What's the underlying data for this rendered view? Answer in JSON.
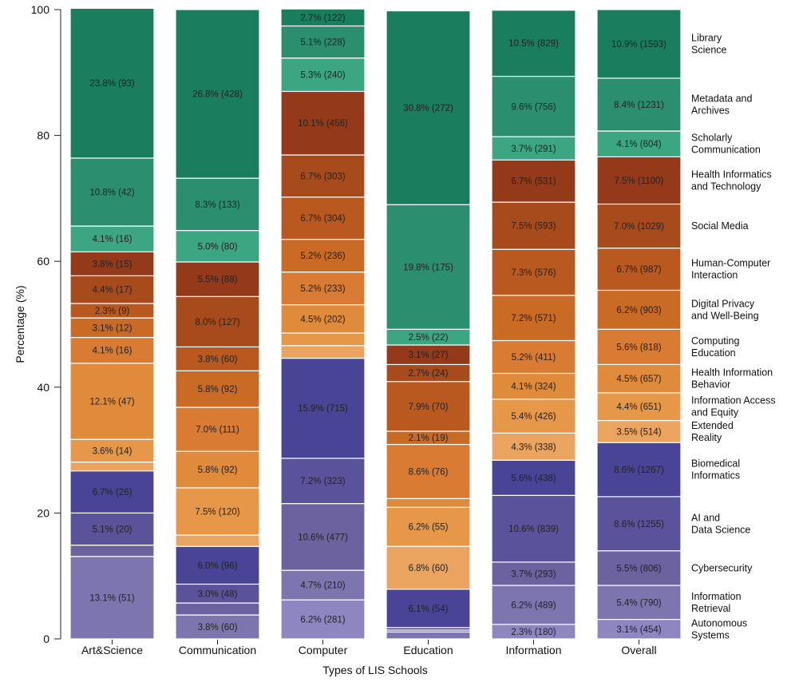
{
  "chart_data": {
    "type": "bar",
    "stacked": true,
    "title": "",
    "xlabel": "Types of LIS Schools",
    "ylabel": "Percentage (%)",
    "ylim": [
      0,
      100
    ],
    "yticks": [
      0,
      20,
      40,
      60,
      80,
      100
    ],
    "categories": [
      "Art&Science",
      "Communication",
      "Computer",
      "Education",
      "Information",
      "Overall"
    ],
    "series": [
      {
        "name": "Autonomous Systems",
        "label_lines": [
          "Autonomous",
          "Systems"
        ],
        "color": "#8e86c0",
        "values": [
          0,
          0,
          6.2,
          0,
          2.3,
          3.1
        ],
        "labels": [
          "",
          "",
          "6.2% (281)",
          "",
          "2.3% (180)",
          "3.1% (454)"
        ]
      },
      {
        "name": "Information Retrieval",
        "label_lines": [
          "Information",
          "Retrieval"
        ],
        "color": "#7d75ad",
        "values": [
          13.1,
          3.8,
          4.7,
          1.1,
          6.2,
          5.4
        ],
        "labels": [
          "13.1% (51)",
          "3.8% (60)",
          "4.7% (210)",
          "",
          "6.2% (489)",
          "5.4% (790)"
        ]
      },
      {
        "name": "Cybersecurity",
        "label_lines": [
          "Cybersecurity"
        ],
        "color": "#6b629f",
        "values": [
          1.8,
          1.9,
          10.6,
          0.3,
          3.7,
          5.5
        ],
        "labels": [
          "",
          "",
          "10.6% (477)",
          "",
          "3.7% (293)",
          "5.5% (806)"
        ]
      },
      {
        "name": "AI and Data Science",
        "label_lines": [
          "AI and",
          "Data Science"
        ],
        "color": "#5a529a",
        "values": [
          5.1,
          3.0,
          7.2,
          0.4,
          10.6,
          8.6
        ],
        "labels": [
          "5.1% (20)",
          "3.0% (48)",
          "7.2% (323)",
          "",
          "10.6% (839)",
          "8.6% (1255)"
        ]
      },
      {
        "name": "Biomedical Informatics",
        "label_lines": [
          "Biomedical",
          "Informatics"
        ],
        "color": "#4a4496",
        "values": [
          6.7,
          6.0,
          15.9,
          6.1,
          5.6,
          8.6
        ],
        "labels": [
          "6.7% (26)",
          "6.0% (96)",
          "15.9% (715)",
          "6.1% (54)",
          "5.6% (438)",
          "8.6% (1267)"
        ]
      },
      {
        "name": "Extended Reality",
        "label_lines": [
          "Extended",
          "Reality"
        ],
        "color": "#eba45f",
        "values": [
          1.4,
          1.8,
          2.0,
          6.8,
          4.3,
          3.5
        ],
        "labels": [
          "",
          "",
          "",
          "6.8% (60)",
          "4.3% (338)",
          "3.5% (514)"
        ]
      },
      {
        "name": "Information Access and Equity",
        "label_lines": [
          "Information Access",
          "and Equity"
        ],
        "color": "#e69748",
        "values": [
          3.6,
          7.5,
          2.0,
          6.2,
          5.4,
          4.4
        ],
        "labels": [
          "3.6% (14)",
          "7.5% (120)",
          "",
          "6.2% (55)",
          "5.4% (426)",
          "4.4% (651)"
        ]
      },
      {
        "name": "Health Information Behavior",
        "label_lines": [
          "Health Information",
          "Behavior"
        ],
        "color": "#e08a3c",
        "values": [
          12.1,
          5.8,
          4.5,
          1.4,
          4.1,
          4.5
        ],
        "labels": [
          "12.1% (47)",
          "5.8% (92)",
          "4.5% (202)",
          "",
          "4.1% (324)",
          "4.5% (657)"
        ]
      },
      {
        "name": "Computing Education",
        "label_lines": [
          "Computing",
          "Education"
        ],
        "color": "#d97b32",
        "values": [
          4.1,
          7.0,
          5.2,
          8.6,
          5.2,
          5.6
        ],
        "labels": [
          "4.1% (16)",
          "7.0% (111)",
          "5.2% (233)",
          "8.6% (76)",
          "5.2% (411)",
          "5.6% (818)"
        ]
      },
      {
        "name": "Digital Privacy and Well-Being",
        "label_lines": [
          "Digital Privacy",
          "and Well-Being"
        ],
        "color": "#c96a25",
        "values": [
          3.1,
          5.8,
          5.2,
          2.1,
          7.2,
          6.2
        ],
        "labels": [
          "3.1% (12)",
          "5.8% (92)",
          "5.2% (236)",
          "2.1% (19)",
          "7.2% (571)",
          "6.2% (903)"
        ]
      },
      {
        "name": "Human-Computer Interaction",
        "label_lines": [
          "Human-Computer",
          "Interaction"
        ],
        "color": "#b9591f",
        "values": [
          2.3,
          3.8,
          6.7,
          7.9,
          7.3,
          6.7
        ],
        "labels": [
          "2.3% (9)",
          "3.8% (60)",
          "6.7% (304)",
          "7.9% (70)",
          "7.3% (576)",
          "6.7% (987)"
        ]
      },
      {
        "name": "Social Media",
        "label_lines": [
          "Social Media"
        ],
        "color": "#a84b1c",
        "values": [
          4.4,
          8.0,
          6.7,
          2.7,
          7.5,
          7.0
        ],
        "labels": [
          "4.4% (17)",
          "8.0% (127)",
          "6.7% (303)",
          "2.7% (24)",
          "7.5% (593)",
          "7.0% (1029)"
        ]
      },
      {
        "name": "Health Informatics and Technology",
        "label_lines": [
          "Health Informatics",
          "and Technology"
        ],
        "color": "#943a1b",
        "values": [
          3.8,
          5.5,
          10.1,
          3.1,
          6.7,
          7.5
        ],
        "labels": [
          "3.8% (15)",
          "5.5% (88)",
          "10.1% (456)",
          "3.1% (27)",
          "6.7% (531)",
          "7.5% (1100)"
        ]
      },
      {
        "name": "Scholarly Communication",
        "label_lines": [
          "Scholarly",
          "Communication"
        ],
        "color": "#3ca582",
        "values": [
          4.1,
          5.0,
          5.3,
          2.5,
          3.7,
          4.1
        ],
        "labels": [
          "4.1% (16)",
          "5.0% (80)",
          "5.3% (240)",
          "2.5% (22)",
          "3.7% (291)",
          "4.1% (604)"
        ]
      },
      {
        "name": "Metadata and Archives",
        "label_lines": [
          "Metadata and",
          "Archives"
        ],
        "color": "#2b8f6f",
        "values": [
          10.8,
          8.3,
          5.1,
          19.8,
          9.6,
          8.4
        ],
        "labels": [
          "10.8% (42)",
          "8.3% (133)",
          "5.1% (228)",
          "19.8% (175)",
          "9.6% (756)",
          "8.4% (1231)"
        ]
      },
      {
        "name": "Library Science",
        "label_lines": [
          "Library",
          "Science"
        ],
        "color": "#1a7d5e",
        "values": [
          23.8,
          26.8,
          2.7,
          30.8,
          10.5,
          10.9
        ],
        "labels": [
          "23.8% (93)",
          "26.8% (428)",
          "2.7% (122)",
          "30.8% (272)",
          "10.5% (829)",
          "10.9% (1593)"
        ]
      }
    ],
    "legend": "right",
    "grid": false
  }
}
